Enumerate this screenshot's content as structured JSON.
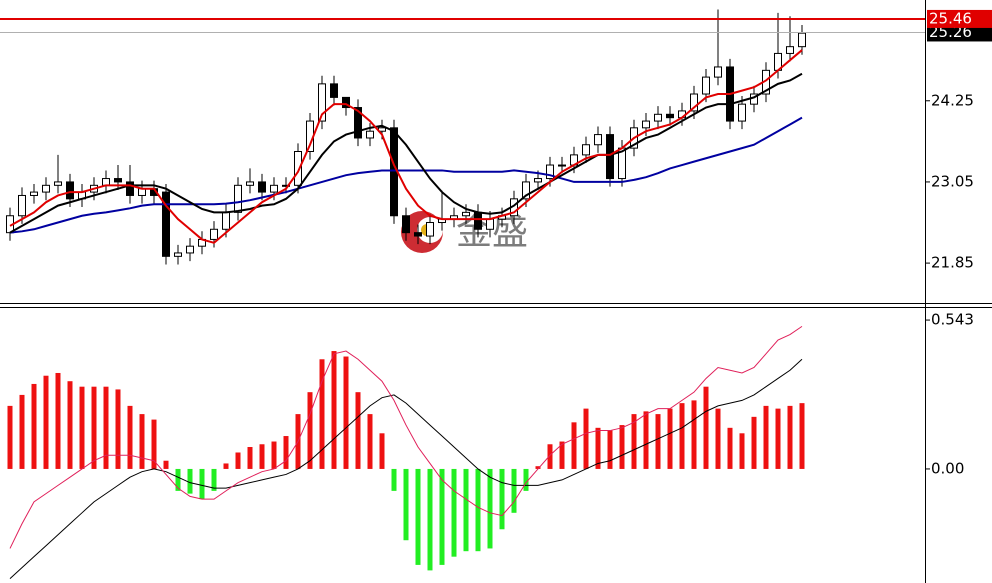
{
  "chart_data": [
    {
      "type": "candlestick",
      "watermark": "金盛",
      "open": [
        22.3,
        22.55,
        22.85,
        22.9,
        23.0,
        23.05,
        22.8,
        22.9,
        23.0,
        23.1,
        23.05,
        22.85,
        22.95,
        22.9,
        21.95,
        22.0,
        22.1,
        22.2,
        22.35,
        22.6,
        23.0,
        23.05,
        22.9,
        23.0,
        23.0,
        23.5,
        23.95,
        24.5,
        24.3,
        24.15,
        23.7,
        23.8,
        23.85,
        22.55,
        22.3,
        22.25,
        22.45,
        22.5,
        22.55,
        22.6,
        22.35,
        22.5,
        22.55,
        22.8,
        23.05,
        23.1,
        23.3,
        23.3,
        23.45,
        23.6,
        23.75,
        23.1,
        23.55,
        23.85,
        23.95,
        24.05,
        24.0,
        24.1,
        24.35,
        24.6,
        24.75,
        23.95,
        24.2,
        24.35,
        24.7,
        24.95,
        25.05
      ],
      "high": [
        22.67,
        22.97,
        23.02,
        23.12,
        23.45,
        23.17,
        23.02,
        23.12,
        23.22,
        23.3,
        23.3,
        23.07,
        23.07,
        23.02,
        22.12,
        22.22,
        22.32,
        22.47,
        22.72,
        23.12,
        23.25,
        23.17,
        23.12,
        23.12,
        23.62,
        24.07,
        24.62,
        24.62,
        24.27,
        24.27,
        23.92,
        23.97,
        23.97,
        22.67,
        22.42,
        22.57,
        22.92,
        22.67,
        22.72,
        22.72,
        22.62,
        22.67,
        22.92,
        23.17,
        23.22,
        23.42,
        23.42,
        23.57,
        23.72,
        23.87,
        23.87,
        23.67,
        23.97,
        24.07,
        24.17,
        24.17,
        24.22,
        24.47,
        24.72,
        25.6,
        24.87,
        24.32,
        24.47,
        24.82,
        25.55,
        25.5,
        25.37
      ],
      "low": [
        22.18,
        22.43,
        22.73,
        22.78,
        22.88,
        22.68,
        22.68,
        22.78,
        22.88,
        22.93,
        22.73,
        22.73,
        22.73,
        21.83,
        21.83,
        21.88,
        21.98,
        22.08,
        22.23,
        22.48,
        22.88,
        22.78,
        22.78,
        22.88,
        22.88,
        23.38,
        23.83,
        24.18,
        24.03,
        23.58,
        23.58,
        23.68,
        22.43,
        22.18,
        22.13,
        22.13,
        22.33,
        22.38,
        22.43,
        22.23,
        22.23,
        22.38,
        22.43,
        22.68,
        22.93,
        22.98,
        23.18,
        23.18,
        23.33,
        23.48,
        22.98,
        22.98,
        23.43,
        23.73,
        23.83,
        23.88,
        23.88,
        23.98,
        24.23,
        24.48,
        23.83,
        23.83,
        24.08,
        24.23,
        24.58,
        24.83,
        24.93
      ],
      "close": [
        22.55,
        22.85,
        22.9,
        23.0,
        23.05,
        22.8,
        22.9,
        23.0,
        23.1,
        23.05,
        22.85,
        22.95,
        22.85,
        21.95,
        22.0,
        22.1,
        22.2,
        22.35,
        22.6,
        23.0,
        23.05,
        22.9,
        23.0,
        23.0,
        23.5,
        23.95,
        24.5,
        24.3,
        24.15,
        23.7,
        23.8,
        23.85,
        22.55,
        22.3,
        22.25,
        22.45,
        22.5,
        22.55,
        22.6,
        22.35,
        22.5,
        22.55,
        22.8,
        23.05,
        23.1,
        23.3,
        23.3,
        23.45,
        23.6,
        23.75,
        23.1,
        23.55,
        23.85,
        23.95,
        24.05,
        24.0,
        24.1,
        24.35,
        24.6,
        24.75,
        23.95,
        24.2,
        24.35,
        24.7,
        24.95,
        25.05,
        25.25
      ],
      "up_color": "#ffffff",
      "down_color": "#000000",
      "lines": [
        {
          "color": "#0000a0",
          "values": [
            22.3,
            22.32,
            22.35,
            22.4,
            22.45,
            22.5,
            22.55,
            22.58,
            22.6,
            22.63,
            22.66,
            22.7,
            22.72,
            22.72,
            22.72,
            22.72,
            22.72,
            22.72,
            22.73,
            22.75,
            22.78,
            22.82,
            22.86,
            22.9,
            22.95,
            23.0,
            23.05,
            23.1,
            23.15,
            23.18,
            23.2,
            23.22,
            23.22,
            23.22,
            23.22,
            23.22,
            23.22,
            23.2,
            23.2,
            23.2,
            23.2,
            23.2,
            23.22,
            23.2,
            23.18,
            23.15,
            23.1,
            23.05,
            23.05,
            23.05,
            23.05,
            23.05,
            23.08,
            23.12,
            23.18,
            23.25,
            23.3,
            23.35,
            23.4,
            23.45,
            23.5,
            23.55,
            23.6,
            23.7,
            23.8,
            23.9,
            24.0
          ]
        },
        {
          "color": "#000000",
          "values": [
            22.3,
            22.4,
            22.5,
            22.6,
            22.7,
            22.75,
            22.8,
            22.85,
            22.9,
            22.95,
            23.0,
            23.0,
            23.0,
            22.95,
            22.85,
            22.75,
            22.65,
            22.6,
            22.6,
            22.62,
            22.65,
            22.7,
            22.72,
            22.8,
            22.95,
            23.2,
            23.45,
            23.65,
            23.75,
            23.8,
            23.85,
            23.88,
            23.8,
            23.6,
            23.35,
            23.1,
            22.9,
            22.75,
            22.65,
            22.6,
            22.58,
            22.6,
            22.7,
            22.85,
            22.95,
            23.05,
            23.15,
            23.25,
            23.35,
            23.45,
            23.45,
            23.5,
            23.6,
            23.7,
            23.75,
            23.85,
            23.95,
            24.05,
            24.15,
            24.2,
            24.2,
            24.25,
            24.3,
            24.4,
            24.5,
            24.55,
            24.65
          ]
        },
        {
          "color": "#e00000",
          "values": [
            22.4,
            22.5,
            22.6,
            22.75,
            22.85,
            22.9,
            22.9,
            22.95,
            23.0,
            23.0,
            23.0,
            22.95,
            22.95,
            22.7,
            22.5,
            22.35,
            22.2,
            22.15,
            22.3,
            22.45,
            22.6,
            22.75,
            22.85,
            22.95,
            23.2,
            23.6,
            24.05,
            24.2,
            24.2,
            24.1,
            23.95,
            23.75,
            23.3,
            22.95,
            22.7,
            22.55,
            22.5,
            22.5,
            22.5,
            22.5,
            22.5,
            22.55,
            22.6,
            22.75,
            22.9,
            23.05,
            23.2,
            23.3,
            23.4,
            23.45,
            23.45,
            23.55,
            23.7,
            23.8,
            23.85,
            23.9,
            24.0,
            24.15,
            24.3,
            24.35,
            24.35,
            24.4,
            24.45,
            24.55,
            24.7,
            24.85,
            25.0
          ]
        }
      ],
      "hlines": [
        {
          "value": 25.26,
          "label": "25.26",
          "color": "#b0b0b0",
          "label_color": "#000000"
        },
        {
          "value": 25.46,
          "label": "25.46",
          "color": "#e00000",
          "label_color": "#e00000"
        }
      ],
      "ylim": [
        21.26,
        25.74
      ],
      "yticks": [
        21.85,
        23.05,
        24.25
      ]
    },
    {
      "type": "macd",
      "values": [
        0.23,
        0.27,
        0.31,
        0.34,
        0.35,
        0.32,
        0.3,
        0.3,
        0.3,
        0.29,
        0.23,
        0.2,
        0.18,
        0.03,
        -0.08,
        -0.09,
        -0.11,
        -0.08,
        0.02,
        0.06,
        0.08,
        0.09,
        0.1,
        0.12,
        0.2,
        0.28,
        0.4,
        0.43,
        0.41,
        0.28,
        0.2,
        0.13,
        -0.08,
        -0.26,
        -0.35,
        -0.37,
        -0.35,
        -0.32,
        -0.3,
        -0.3,
        -0.29,
        -0.22,
        -0.16,
        -0.08,
        0.01,
        0.09,
        0.1,
        0.17,
        0.22,
        0.15,
        0.14,
        0.16,
        0.2,
        0.21,
        0.2,
        0.22,
        0.24,
        0.25,
        0.3,
        0.22,
        0.15,
        0.13,
        0.19,
        0.23,
        0.22,
        0.23,
        0.24
      ],
      "pos_color": "#ee1111",
      "neg_color": "#22ee22",
      "lines": [
        {
          "color": "#000000",
          "values": [
            -0.4,
            -0.36,
            -0.32,
            -0.28,
            -0.24,
            -0.2,
            -0.16,
            -0.12,
            -0.09,
            -0.06,
            -0.03,
            -0.01,
            0.0,
            -0.01,
            -0.03,
            -0.05,
            -0.06,
            -0.07,
            -0.07,
            -0.06,
            -0.05,
            -0.04,
            -0.03,
            -0.02,
            0.0,
            0.03,
            0.07,
            0.11,
            0.15,
            0.19,
            0.23,
            0.26,
            0.27,
            0.24,
            0.2,
            0.16,
            0.12,
            0.08,
            0.04,
            0.0,
            -0.03,
            -0.05,
            -0.06,
            -0.06,
            -0.06,
            -0.05,
            -0.04,
            -0.02,
            0.0,
            0.02,
            0.03,
            0.05,
            0.07,
            0.09,
            0.11,
            0.13,
            0.15,
            0.18,
            0.21,
            0.23,
            0.24,
            0.25,
            0.27,
            0.3,
            0.33,
            0.36,
            0.4
          ]
        },
        {
          "color": "#e0205a",
          "values": [
            -0.29,
            -0.2,
            -0.12,
            -0.09,
            -0.06,
            -0.03,
            0.0,
            0.03,
            0.05,
            0.05,
            0.05,
            0.04,
            0.03,
            -0.02,
            -0.07,
            -0.1,
            -0.11,
            -0.11,
            -0.08,
            -0.05,
            -0.03,
            -0.01,
            0.0,
            0.03,
            0.1,
            0.2,
            0.32,
            0.42,
            0.43,
            0.4,
            0.36,
            0.32,
            0.25,
            0.16,
            0.08,
            0.02,
            -0.04,
            -0.08,
            -0.11,
            -0.14,
            -0.16,
            -0.17,
            -0.12,
            -0.05,
            0.0,
            0.05,
            0.09,
            0.11,
            0.13,
            0.14,
            0.14,
            0.15,
            0.17,
            0.2,
            0.22,
            0.22,
            0.25,
            0.28,
            0.33,
            0.37,
            0.36,
            0.35,
            0.37,
            0.42,
            0.47,
            0.49,
            0.52
          ]
        }
      ],
      "ylim": [
        -0.416,
        0.587
      ],
      "yticks": [
        {
          "value": 0,
          "label": "0.00"
        },
        0.543
      ]
    }
  ]
}
